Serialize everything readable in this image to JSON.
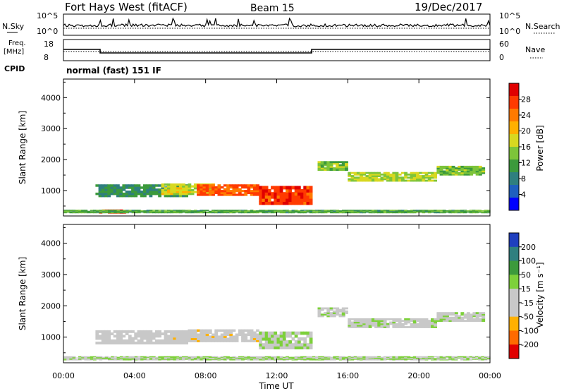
{
  "header": {
    "station": "Fort Hays West (fitACF)",
    "beam": "Beam 15",
    "date": "19/Dec/2017"
  },
  "noise_panel": {
    "left_label": "N.Sky",
    "right_label": "N.Search",
    "left_ticks": [
      "10^5",
      "10^0"
    ],
    "right_ticks": [
      "10^5",
      "10^0"
    ]
  },
  "freq_panel": {
    "left_label_1": "Freq.",
    "left_label_2": "[MHz]",
    "right_label": "Nave",
    "left_ticks": [
      "18",
      "8"
    ],
    "right_ticks": [
      "60",
      "0"
    ]
  },
  "cpid": {
    "label": "CPID",
    "value": "normal (fast) 151 IF"
  },
  "power_panel": {
    "ylabel": "Slant Range [km]",
    "colorbar_label": "Power [dB]",
    "colorbar_ticks": [
      "28",
      "24",
      "20",
      "16",
      "12",
      "8",
      "4"
    ]
  },
  "velocity_panel": {
    "ylabel": "Slant Range [km]",
    "colorbar_label": "Velocity [m s⁻¹]",
    "colorbar_ticks": [
      "200",
      "100",
      "50",
      "15",
      "-15",
      "-50",
      "-100",
      "-200"
    ]
  },
  "x_axis": {
    "label": "Time UT",
    "ticks": [
      "00:00",
      "04:00",
      "08:00",
      "12:00",
      "16:00",
      "20:00",
      "00:00"
    ]
  },
  "colors": {
    "power_scale": [
      "#0000ff",
      "#1f5fbf",
      "#2f7f7f",
      "#3c9a3c",
      "#7dc43a",
      "#d8d820",
      "#ffb000",
      "#ff7a00",
      "#ff3a00",
      "#e00000"
    ],
    "velocity_scale": [
      "#e00000",
      "#ff6a00",
      "#ffb000",
      "#c8c8c8",
      "#c8c8c8",
      "#7dd03a",
      "#3c9a3c",
      "#2f7f7f",
      "#1f3fbf"
    ]
  },
  "chart_data": [
    {
      "type": "heatmap",
      "title": "Fort Hays West (fitACF)",
      "xlabel": "Time UT",
      "ylabel": "Slant Range [km]",
      "colorbar": "Power [dB]",
      "xlim": [
        0,
        24
      ],
      "ylim": [
        180,
        4600
      ],
      "clim": [
        0,
        32
      ],
      "bands": [
        {
          "t0": 1.8,
          "t1": 7.0,
          "r_center": 1000,
          "r_half": 200,
          "value": 10
        },
        {
          "t0": 5.5,
          "t1": 8.5,
          "r_center": 1050,
          "r_half": 180,
          "value": 18
        },
        {
          "t0": 7.5,
          "t1": 11.0,
          "r_center": 1020,
          "r_half": 180,
          "value": 26
        },
        {
          "t0": 11.0,
          "t1": 14.0,
          "r_center": 850,
          "r_half": 300,
          "value": 28
        },
        {
          "t0": 14.3,
          "t1": 16.0,
          "r_center": 1800,
          "r_half": 150,
          "value": 14
        },
        {
          "t0": 16.0,
          "t1": 21.0,
          "r_center": 1450,
          "r_half": 150,
          "value": 16
        },
        {
          "t0": 21.0,
          "t1": 23.7,
          "r_center": 1650,
          "r_half": 150,
          "value": 14
        },
        {
          "t0": 2.0,
          "t1": 3.5,
          "r_center": 330,
          "r_half": 60,
          "value": 28
        },
        {
          "t0": 0.0,
          "t1": 24.0,
          "r_center": 330,
          "r_half": 50,
          "value": 12
        }
      ]
    },
    {
      "type": "heatmap",
      "title": "Beam 15",
      "xlabel": "Time UT",
      "ylabel": "Slant Range [km]",
      "colorbar": "Velocity [m s⁻¹]",
      "xlim": [
        0,
        24
      ],
      "ylim": [
        180,
        4600
      ],
      "clim": [
        -250,
        250
      ],
      "bands": [
        {
          "t0": 1.8,
          "t1": 7.0,
          "r_center": 1000,
          "r_half": 220,
          "value": -40
        },
        {
          "t0": 7.0,
          "t1": 11.0,
          "r_center": 1050,
          "r_half": 200,
          "value": -45
        },
        {
          "t0": 11.0,
          "t1": 14.0,
          "r_center": 900,
          "r_half": 280,
          "value": 20
        },
        {
          "t0": 14.3,
          "t1": 16.0,
          "r_center": 1800,
          "r_half": 150,
          "value": 0
        },
        {
          "t0": 16.0,
          "t1": 21.0,
          "r_center": 1450,
          "r_half": 150,
          "value": 0
        },
        {
          "t0": 21.0,
          "t1": 23.7,
          "r_center": 1650,
          "r_half": 150,
          "value": 0
        },
        {
          "t0": 0.0,
          "t1": 24.0,
          "r_center": 330,
          "r_half": 60,
          "value": 25
        }
      ]
    }
  ]
}
